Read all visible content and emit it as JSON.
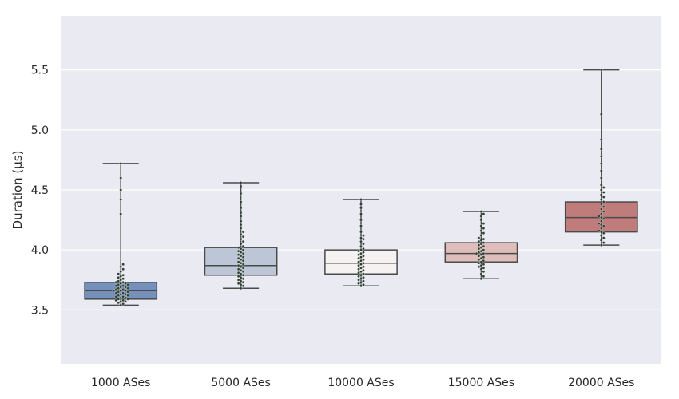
{
  "chart_data": {
    "type": "box",
    "title": "",
    "xlabel": "",
    "ylabel": "Duration (µs)",
    "ylim": [
      3.05,
      5.95
    ],
    "yticks": [
      3.5,
      4.0,
      4.5,
      5.0,
      5.5
    ],
    "ytick_labels": [
      "3.5",
      "4.0",
      "4.5",
      "5.0",
      "5.5"
    ],
    "grid": true,
    "background": "#eaeaf2",
    "point_color": "#2f4032",
    "categories": [
      "1000 ASes",
      "5000 ASes",
      "10000 ASes",
      "15000 ASes",
      "20000 ASes"
    ],
    "boxes": [
      {
        "label": "1000 ASes",
        "color": "#7590ba",
        "whisker_low": 3.54,
        "q1": 3.59,
        "median": 3.66,
        "q3": 3.73,
        "whisker_high": 4.72,
        "points": [
          3.54,
          3.55,
          3.56,
          3.57,
          3.57,
          3.58,
          3.58,
          3.59,
          3.59,
          3.6,
          3.6,
          3.61,
          3.61,
          3.62,
          3.62,
          3.63,
          3.63,
          3.64,
          3.64,
          3.65,
          3.65,
          3.66,
          3.66,
          3.66,
          3.67,
          3.67,
          3.68,
          3.68,
          3.69,
          3.69,
          3.7,
          3.7,
          3.71,
          3.71,
          3.72,
          3.72,
          3.73,
          3.73,
          3.74,
          3.75,
          3.76,
          3.77,
          3.78,
          3.79,
          3.8,
          3.82,
          3.84,
          3.86,
          3.88,
          4.3,
          4.42,
          4.5,
          4.6,
          4.72
        ]
      },
      {
        "label": "5000 ASes",
        "color": "#bcc6d6",
        "whisker_low": 3.68,
        "q1": 3.79,
        "median": 3.87,
        "q3": 4.02,
        "whisker_high": 4.56,
        "points": [
          3.68,
          3.7,
          3.71,
          3.72,
          3.73,
          3.74,
          3.75,
          3.76,
          3.77,
          3.78,
          3.79,
          3.8,
          3.81,
          3.82,
          3.83,
          3.84,
          3.85,
          3.86,
          3.87,
          3.88,
          3.89,
          3.9,
          3.91,
          3.92,
          3.93,
          3.94,
          3.95,
          3.96,
          3.97,
          3.98,
          3.99,
          4.0,
          4.01,
          4.02,
          4.03,
          4.05,
          4.07,
          4.09,
          4.11,
          4.13,
          4.15,
          4.18,
          4.21,
          4.24,
          4.28,
          4.31,
          4.35,
          4.4,
          4.47,
          4.53,
          4.56
        ]
      },
      {
        "label": "10000 ASes",
        "color": "#f7f2f2",
        "whisker_low": 3.7,
        "q1": 3.8,
        "median": 3.89,
        "q3": 4.0,
        "whisker_high": 4.42,
        "points": [
          3.7,
          3.71,
          3.72,
          3.73,
          3.74,
          3.75,
          3.76,
          3.77,
          3.78,
          3.79,
          3.8,
          3.81,
          3.82,
          3.83,
          3.84,
          3.85,
          3.86,
          3.87,
          3.88,
          3.89,
          3.9,
          3.91,
          3.92,
          3.93,
          3.94,
          3.95,
          3.96,
          3.97,
          3.98,
          3.99,
          4.0,
          4.01,
          4.03,
          4.05,
          4.07,
          4.09,
          4.1,
          4.12,
          4.15,
          4.2,
          4.25,
          4.3,
          4.35,
          4.38,
          4.42
        ]
      },
      {
        "label": "15000 ASes",
        "color": "#dfbdbb",
        "whisker_low": 3.76,
        "q1": 3.9,
        "median": 3.97,
        "q3": 4.06,
        "whisker_high": 4.32,
        "points": [
          3.76,
          3.78,
          3.8,
          3.82,
          3.84,
          3.85,
          3.86,
          3.87,
          3.88,
          3.89,
          3.9,
          3.91,
          3.92,
          3.93,
          3.94,
          3.95,
          3.96,
          3.97,
          3.97,
          3.98,
          3.99,
          4.0,
          4.01,
          4.02,
          4.03,
          4.04,
          4.05,
          4.06,
          4.07,
          4.08,
          4.09,
          4.1,
          4.12,
          4.14,
          4.16,
          4.18,
          4.2,
          4.22,
          4.25,
          4.28,
          4.3,
          4.32
        ]
      },
      {
        "label": "20000 ASes",
        "color": "#c07b7b",
        "whisker_low": 4.04,
        "q1": 4.15,
        "median": 4.27,
        "q3": 4.4,
        "whisker_high": 5.5,
        "points": [
          4.04,
          4.06,
          4.08,
          4.1,
          4.12,
          4.14,
          4.15,
          4.16,
          4.18,
          4.2,
          4.21,
          4.22,
          4.24,
          4.26,
          4.27,
          4.28,
          4.3,
          4.32,
          4.34,
          4.36,
          4.38,
          4.4,
          4.42,
          4.44,
          4.46,
          4.48,
          4.5,
          4.52,
          4.54,
          4.6,
          4.66,
          4.72,
          4.78,
          4.84,
          4.92,
          5.13,
          5.5
        ]
      }
    ]
  }
}
